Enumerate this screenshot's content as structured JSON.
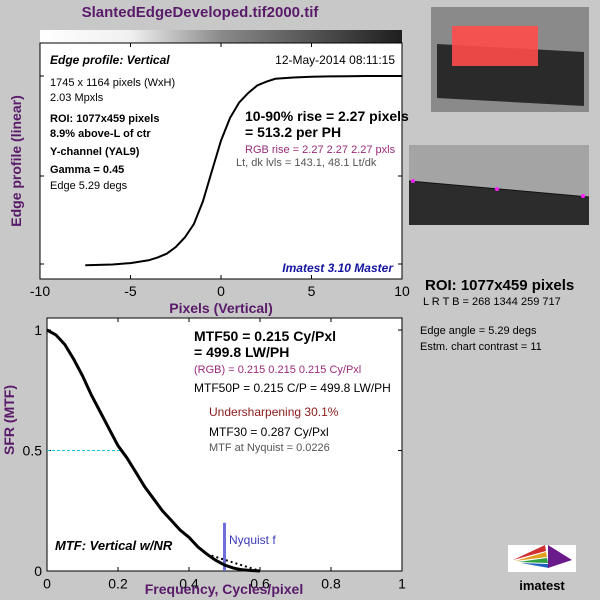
{
  "title": "SlantedEdgeDeveloped.tif2000.tif",
  "colors": {
    "label_purple": "#5a1a6a",
    "rgb_magenta": "#9a2a7a",
    "under_red": "#8a1a1a",
    "nyquist_blue": "#6e70d8",
    "cyan_ref": "#00c8d8",
    "roi_red": "#ff4a4a"
  },
  "top_panel": {
    "header": "Edge profile: Vertical",
    "date": "12-May-2014 08:11:15",
    "info_lines": [
      "1745 x 1164 pixels (WxH)",
      "2.03 Mpxls"
    ],
    "roi_lines": [
      "ROI:  1077x459 pixels",
      "8.9% above-L of ctr",
      "Y-channel  (YAL9)",
      "Gamma = 0.45"
    ],
    "edge_line": "Edge 5.29 degs",
    "rise_line1": "10-90% rise = 2.27 pixels",
    "rise_line2": "= 513.2 per PH",
    "rgb_rise": "RGB rise = 2.27  2.27  2.27 pxls",
    "levels": "Lt, dk lvls = 143.1, 48.1   Lt/dk",
    "version": "Imatest 3.10 Master"
  },
  "bottom_panel": {
    "mtf50": "MTF50 = 0.215 Cy/Pxl",
    "lwph": "= 499.8 LW/PH",
    "rgb": "(RGB) = 0.215  0.215  0.215 Cy/Pxl",
    "mtf50p": "MTF50P = 0.215 C/P = 499.8 LW/PH",
    "under": "Undersharpening 30.1%",
    "mtf30": "MTF30 = 0.287 Cy/Pxl",
    "nyq_mtf": "MTF at Nyquist = 0.0226",
    "corner_label": "MTF: Vertical w/NR",
    "nyquist_label": "Nyquist f"
  },
  "right_panel": {
    "roi_title": "ROI:  1077x459 pixels",
    "lrtb": "L R  T B = 268 1344  259 717",
    "edge_angle": "Edge angle = 5.29 degs",
    "contrast": "Estm. chart contrast = 11",
    "logo_text": "imatest"
  },
  "chart_data": [
    {
      "type": "line",
      "title": "Edge profile: Vertical",
      "xlabel": "Pixels (Vertical)",
      "ylabel": "Edge profile (linear)",
      "xlim": [
        -10,
        10
      ],
      "xticks": [
        -10,
        -5,
        0,
        5,
        10
      ],
      "grid": false,
      "series": [
        {
          "x": [
            -7.5,
            -6,
            -5,
            -4,
            -3.5,
            -3,
            -2.5,
            -2,
            -1.5,
            -1,
            -0.5,
            0,
            0.5,
            1,
            1.5,
            2,
            2.5,
            3,
            4,
            5,
            6,
            7,
            8,
            9,
            10
          ],
          "y": [
            0.004,
            0.008,
            0.015,
            0.03,
            0.045,
            0.065,
            0.1,
            0.15,
            0.22,
            0.34,
            0.5,
            0.66,
            0.78,
            0.86,
            0.91,
            0.95,
            0.97,
            0.985,
            0.992,
            0.996,
            0.998,
            0.999,
            1,
            1,
            1
          ]
        }
      ]
    },
    {
      "type": "line",
      "xlabel": "Frequency, Cycles/pixel",
      "ylabel": "SFR (MTF)",
      "xlim": [
        0,
        1
      ],
      "ylim": [
        0,
        1.05
      ],
      "xticks": [
        0,
        0.2,
        0.4,
        0.6,
        0.8,
        1
      ],
      "yticks": [
        0,
        0.5,
        1
      ],
      "grid": false,
      "series": [
        {
          "x": [
            0,
            0.025,
            0.05,
            0.075,
            0.1,
            0.125,
            0.15,
            0.175,
            0.2,
            0.225,
            0.25,
            0.275,
            0.3,
            0.325,
            0.35,
            0.375,
            0.4,
            0.425,
            0.45,
            0.475,
            0.5,
            0.525,
            0.55,
            0.575,
            0.6
          ],
          "y": [
            1.0,
            0.98,
            0.94,
            0.88,
            0.81,
            0.73,
            0.66,
            0.59,
            0.52,
            0.47,
            0.41,
            0.35,
            0.3,
            0.25,
            0.21,
            0.17,
            0.14,
            0.1,
            0.07,
            0.045,
            0.025,
            0.012,
            0.005,
            0.002,
            0.0
          ]
        }
      ],
      "reference_level": 0.5,
      "nyquist_x": 0.5,
      "nyquist_value": 0.2
    }
  ]
}
